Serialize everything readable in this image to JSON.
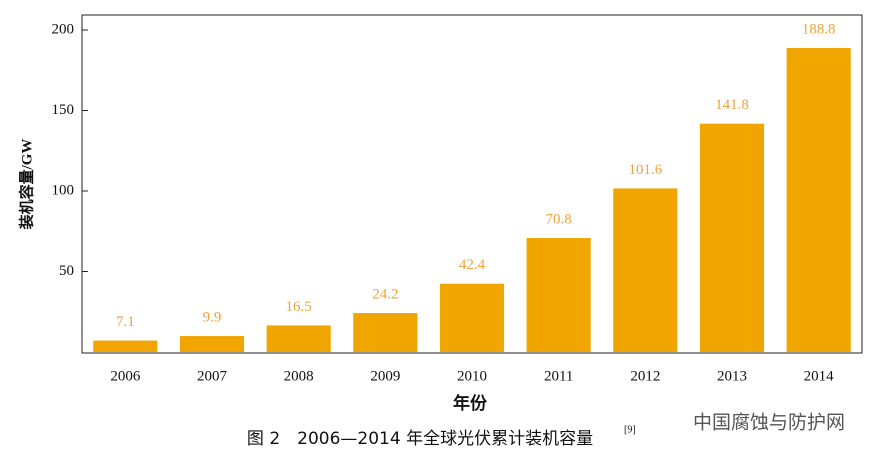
{
  "chart_data": {
    "type": "bar",
    "title": "图 2　2006—2014 年全球光伏累计装机容量",
    "title_ref": "[9]",
    "watermark": "中国腐蚀与防护网",
    "xlabel": "年份",
    "ylabel": "装机容量/GW",
    "categories": [
      "2006",
      "2007",
      "2008",
      "2009",
      "2010",
      "2011",
      "2012",
      "2013",
      "2014"
    ],
    "values": [
      7.1,
      9.9,
      16.5,
      24.2,
      42.4,
      70.8,
      101.6,
      141.8,
      188.8
    ],
    "color": "#f0a500",
    "label_color": "#eea23a",
    "ylim": [
      0,
      200
    ],
    "yticks": [
      50,
      100,
      150,
      200
    ],
    "grid": false
  }
}
